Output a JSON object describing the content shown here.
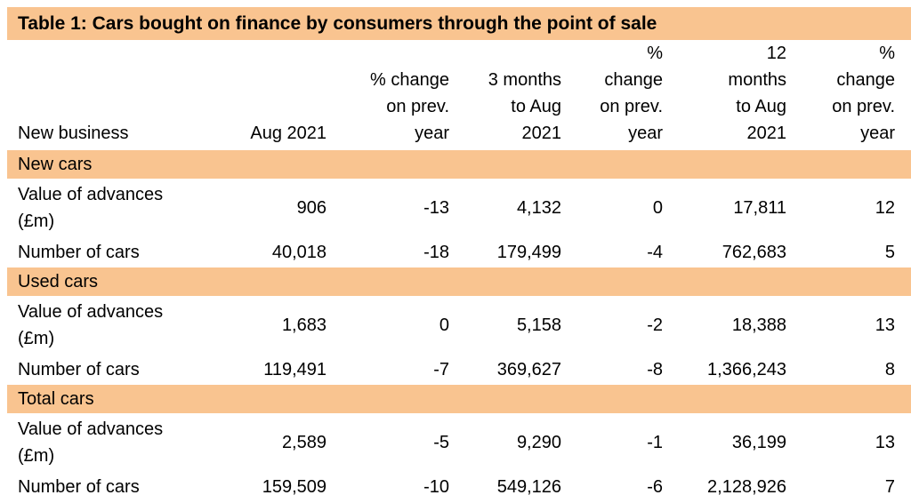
{
  "colors": {
    "band": "#F9C490",
    "text": "#000000",
    "background": "#FFFFFF"
  },
  "table": {
    "title": "Table 1: Cars bought on finance by consumers through the point of sale",
    "columns": [
      "New business",
      "Aug 2021",
      "% change\non prev.\nyear",
      "3 months\nto Aug\n2021",
      "%\nchange\non prev.\nyear",
      "12\nmonths\nto Aug\n2021",
      "%\nchange\non prev.\nyear"
    ],
    "sections": [
      {
        "name": "New cars",
        "rows": [
          {
            "label": "Value of advances\n(£m)",
            "values": [
              "906",
              "-13",
              "4,132",
              "0",
              "17,811",
              "12"
            ]
          },
          {
            "label": "Number of cars",
            "values": [
              "40,018",
              "-18",
              "179,499",
              "-4",
              "762,683",
              "5"
            ]
          }
        ]
      },
      {
        "name": "Used cars",
        "rows": [
          {
            "label": "Value of advances\n(£m)",
            "values": [
              "1,683",
              "0",
              "5,158",
              "-2",
              "18,388",
              "13"
            ]
          },
          {
            "label": "Number of cars",
            "values": [
              "119,491",
              "-7",
              "369,627",
              "-8",
              "1,366,243",
              "8"
            ]
          }
        ]
      },
      {
        "name": "Total cars",
        "rows": [
          {
            "label": "Value of advances\n(£m)",
            "values": [
              "2,589",
              "-5",
              "9,290",
              "-1",
              "36,199",
              "13"
            ]
          },
          {
            "label": "Number of cars",
            "values": [
              "159,509",
              "-10",
              "549,126",
              "-6",
              "2,128,926",
              "7"
            ]
          }
        ]
      }
    ]
  },
  "chart_data": {
    "type": "table",
    "title": "Table 1: Cars bought on finance by consumers through the point of sale",
    "columns": [
      "New business",
      "Aug 2021",
      "% change on prev. year",
      "3 months to Aug 2021",
      "% change on prev. year",
      "12 months to Aug 2021",
      "% change on prev. year"
    ],
    "rows": [
      [
        "New cars",
        "Value of advances (£m)",
        906,
        -13,
        4132,
        0,
        17811,
        12
      ],
      [
        "New cars",
        "Number of cars",
        40018,
        -18,
        179499,
        -4,
        762683,
        5
      ],
      [
        "Used cars",
        "Value of advances (£m)",
        1683,
        0,
        5158,
        -2,
        18388,
        13
      ],
      [
        "Used cars",
        "Number of cars",
        119491,
        -7,
        369627,
        -8,
        1366243,
        8
      ],
      [
        "Total cars",
        "Value of advances (£m)",
        2589,
        -5,
        9290,
        -1,
        36199,
        13
      ],
      [
        "Total cars",
        "Number of cars",
        159509,
        -10,
        549126,
        -6,
        2128926,
        7
      ]
    ]
  }
}
